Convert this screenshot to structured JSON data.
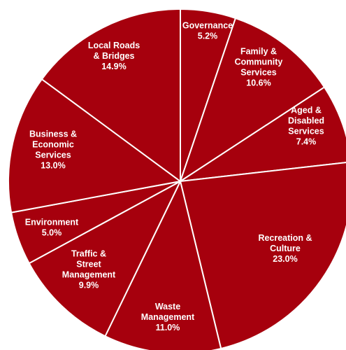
{
  "chart_data": {
    "type": "pie",
    "colors": {
      "slice_fill": "#A6000D",
      "slice_border": "#ffffff",
      "label_text": "#ffffff"
    },
    "slices": [
      {
        "label_lines": [
          "Governance"
        ],
        "value_label": "5.2%",
        "value": 5.2
      },
      {
        "label_lines": [
          "Family &",
          "Community",
          "Services"
        ],
        "value_label": "10.6%",
        "value": 10.6
      },
      {
        "label_lines": [
          "Aged &",
          "Disabled",
          "Services"
        ],
        "value_label": "7.4%",
        "value": 7.4
      },
      {
        "label_lines": [
          "Recreation &",
          "Culture"
        ],
        "value_label": "23.0%",
        "value": 23.0
      },
      {
        "label_lines": [
          "Waste",
          "Management"
        ],
        "value_label": "11.0%",
        "value": 11.0
      },
      {
        "label_lines": [
          "Traffic &",
          "Street",
          "Management"
        ],
        "value_label": "9.9%",
        "value": 9.9
      },
      {
        "label_lines": [
          "Environment"
        ],
        "value_label": "5.0%",
        "value": 5.0
      },
      {
        "label_lines": [
          "Business &",
          "Economic",
          "Services"
        ],
        "value_label": "13.0%",
        "value": 13.0
      },
      {
        "label_lines": [
          "Local Roads",
          "& Bridges"
        ],
        "value_label": "14.9%",
        "value": 14.9
      }
    ]
  }
}
